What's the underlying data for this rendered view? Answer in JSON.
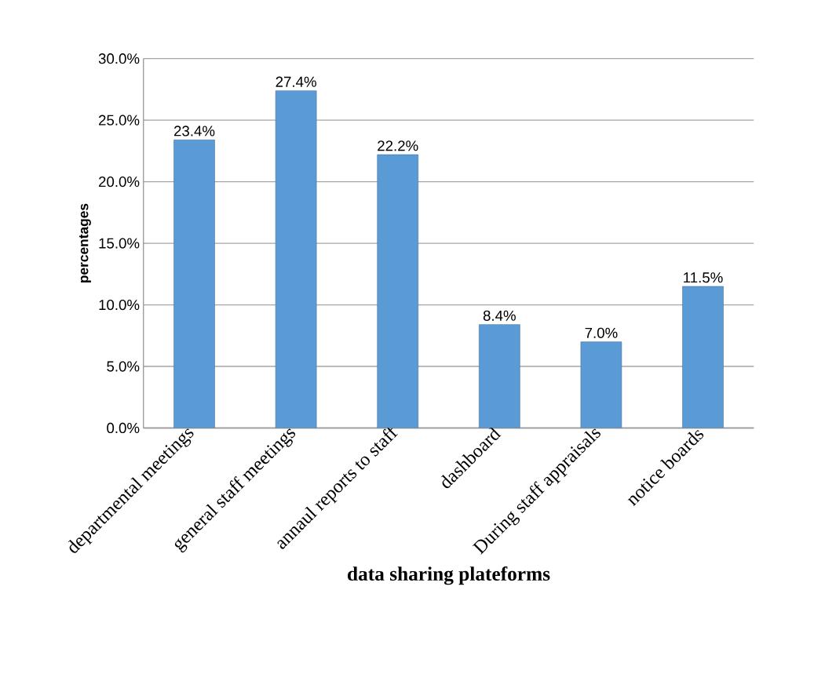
{
  "chart_data": {
    "type": "bar",
    "xlabel": "data sharing plateforms",
    "ylabel": "percentages",
    "categories": [
      "departmental meetings",
      "general staff meetings",
      "annaul reports to staff",
      "dashboard",
      "During staff appraisals",
      "notice boards"
    ],
    "values": [
      23.4,
      27.4,
      22.2,
      8.4,
      7.0,
      11.5
    ],
    "value_labels": [
      "23.4%",
      "27.4%",
      "22.2%",
      "8.4%",
      "7.0%",
      "11.5%"
    ],
    "color": "#5b9bd5",
    "ylim": [
      0,
      30
    ],
    "yticks": [
      {
        "value": 0,
        "label": "0.0%"
      },
      {
        "value": 5,
        "label": "5.0%"
      },
      {
        "value": 10,
        "label": "10.0%"
      },
      {
        "value": 15,
        "label": "15.0%"
      },
      {
        "value": 20,
        "label": "20.0%"
      },
      {
        "value": 25,
        "label": "25.0%"
      },
      {
        "value": 30,
        "label": "30.0%"
      }
    ],
    "grid": "y"
  }
}
